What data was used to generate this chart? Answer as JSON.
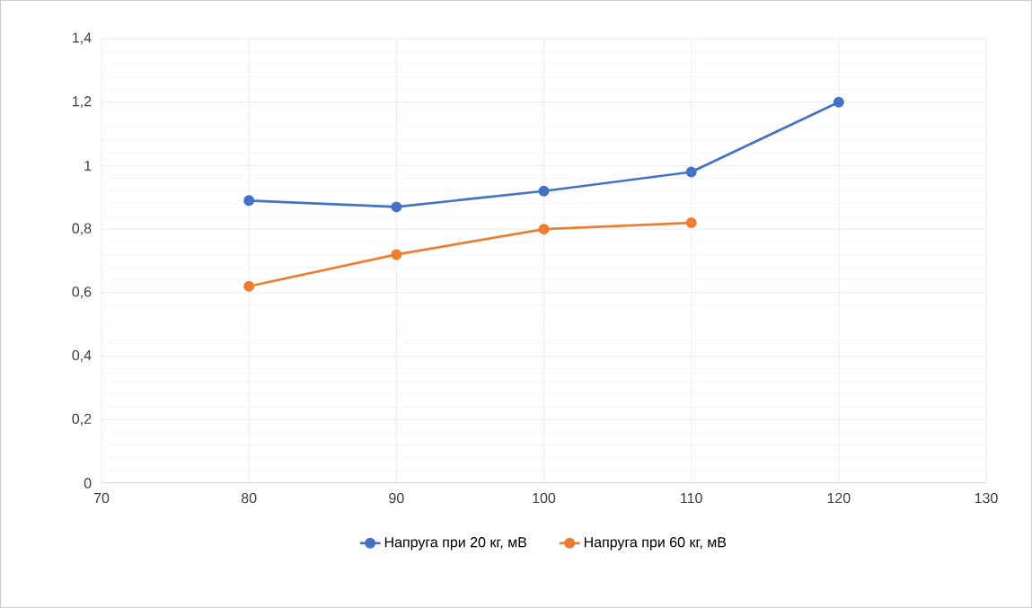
{
  "chart_data": {
    "type": "line",
    "x": [
      80,
      90,
      100,
      110,
      120
    ],
    "series": [
      {
        "name": "Напруга при 20 кг, мВ",
        "color": "#4472c4",
        "values": [
          0.89,
          0.87,
          0.92,
          0.98,
          1.2
        ]
      },
      {
        "name": "Напруга при 60 кг, мВ",
        "color": "#ed7d31",
        "values": [
          0.62,
          0.72,
          0.8,
          0.82,
          null
        ]
      }
    ],
    "xlim": [
      70,
      130
    ],
    "xticks": [
      70,
      80,
      90,
      100,
      110,
      120,
      130
    ],
    "ylim": [
      0,
      1.4
    ],
    "yticks": [
      0,
      {
        "value": 0.2,
        "label": "0,2"
      },
      {
        "value": 0.4,
        "label": "0,4"
      },
      {
        "value": 0.6,
        "label": "0,6"
      },
      {
        "value": 0.8,
        "label": "0,8"
      },
      1,
      {
        "value": 1.2,
        "label": "1,2"
      },
      {
        "value": 1.4,
        "label": "1,4"
      }
    ],
    "grid": true,
    "legend": "bottom",
    "marker": "circle",
    "line_style": "solid"
  }
}
